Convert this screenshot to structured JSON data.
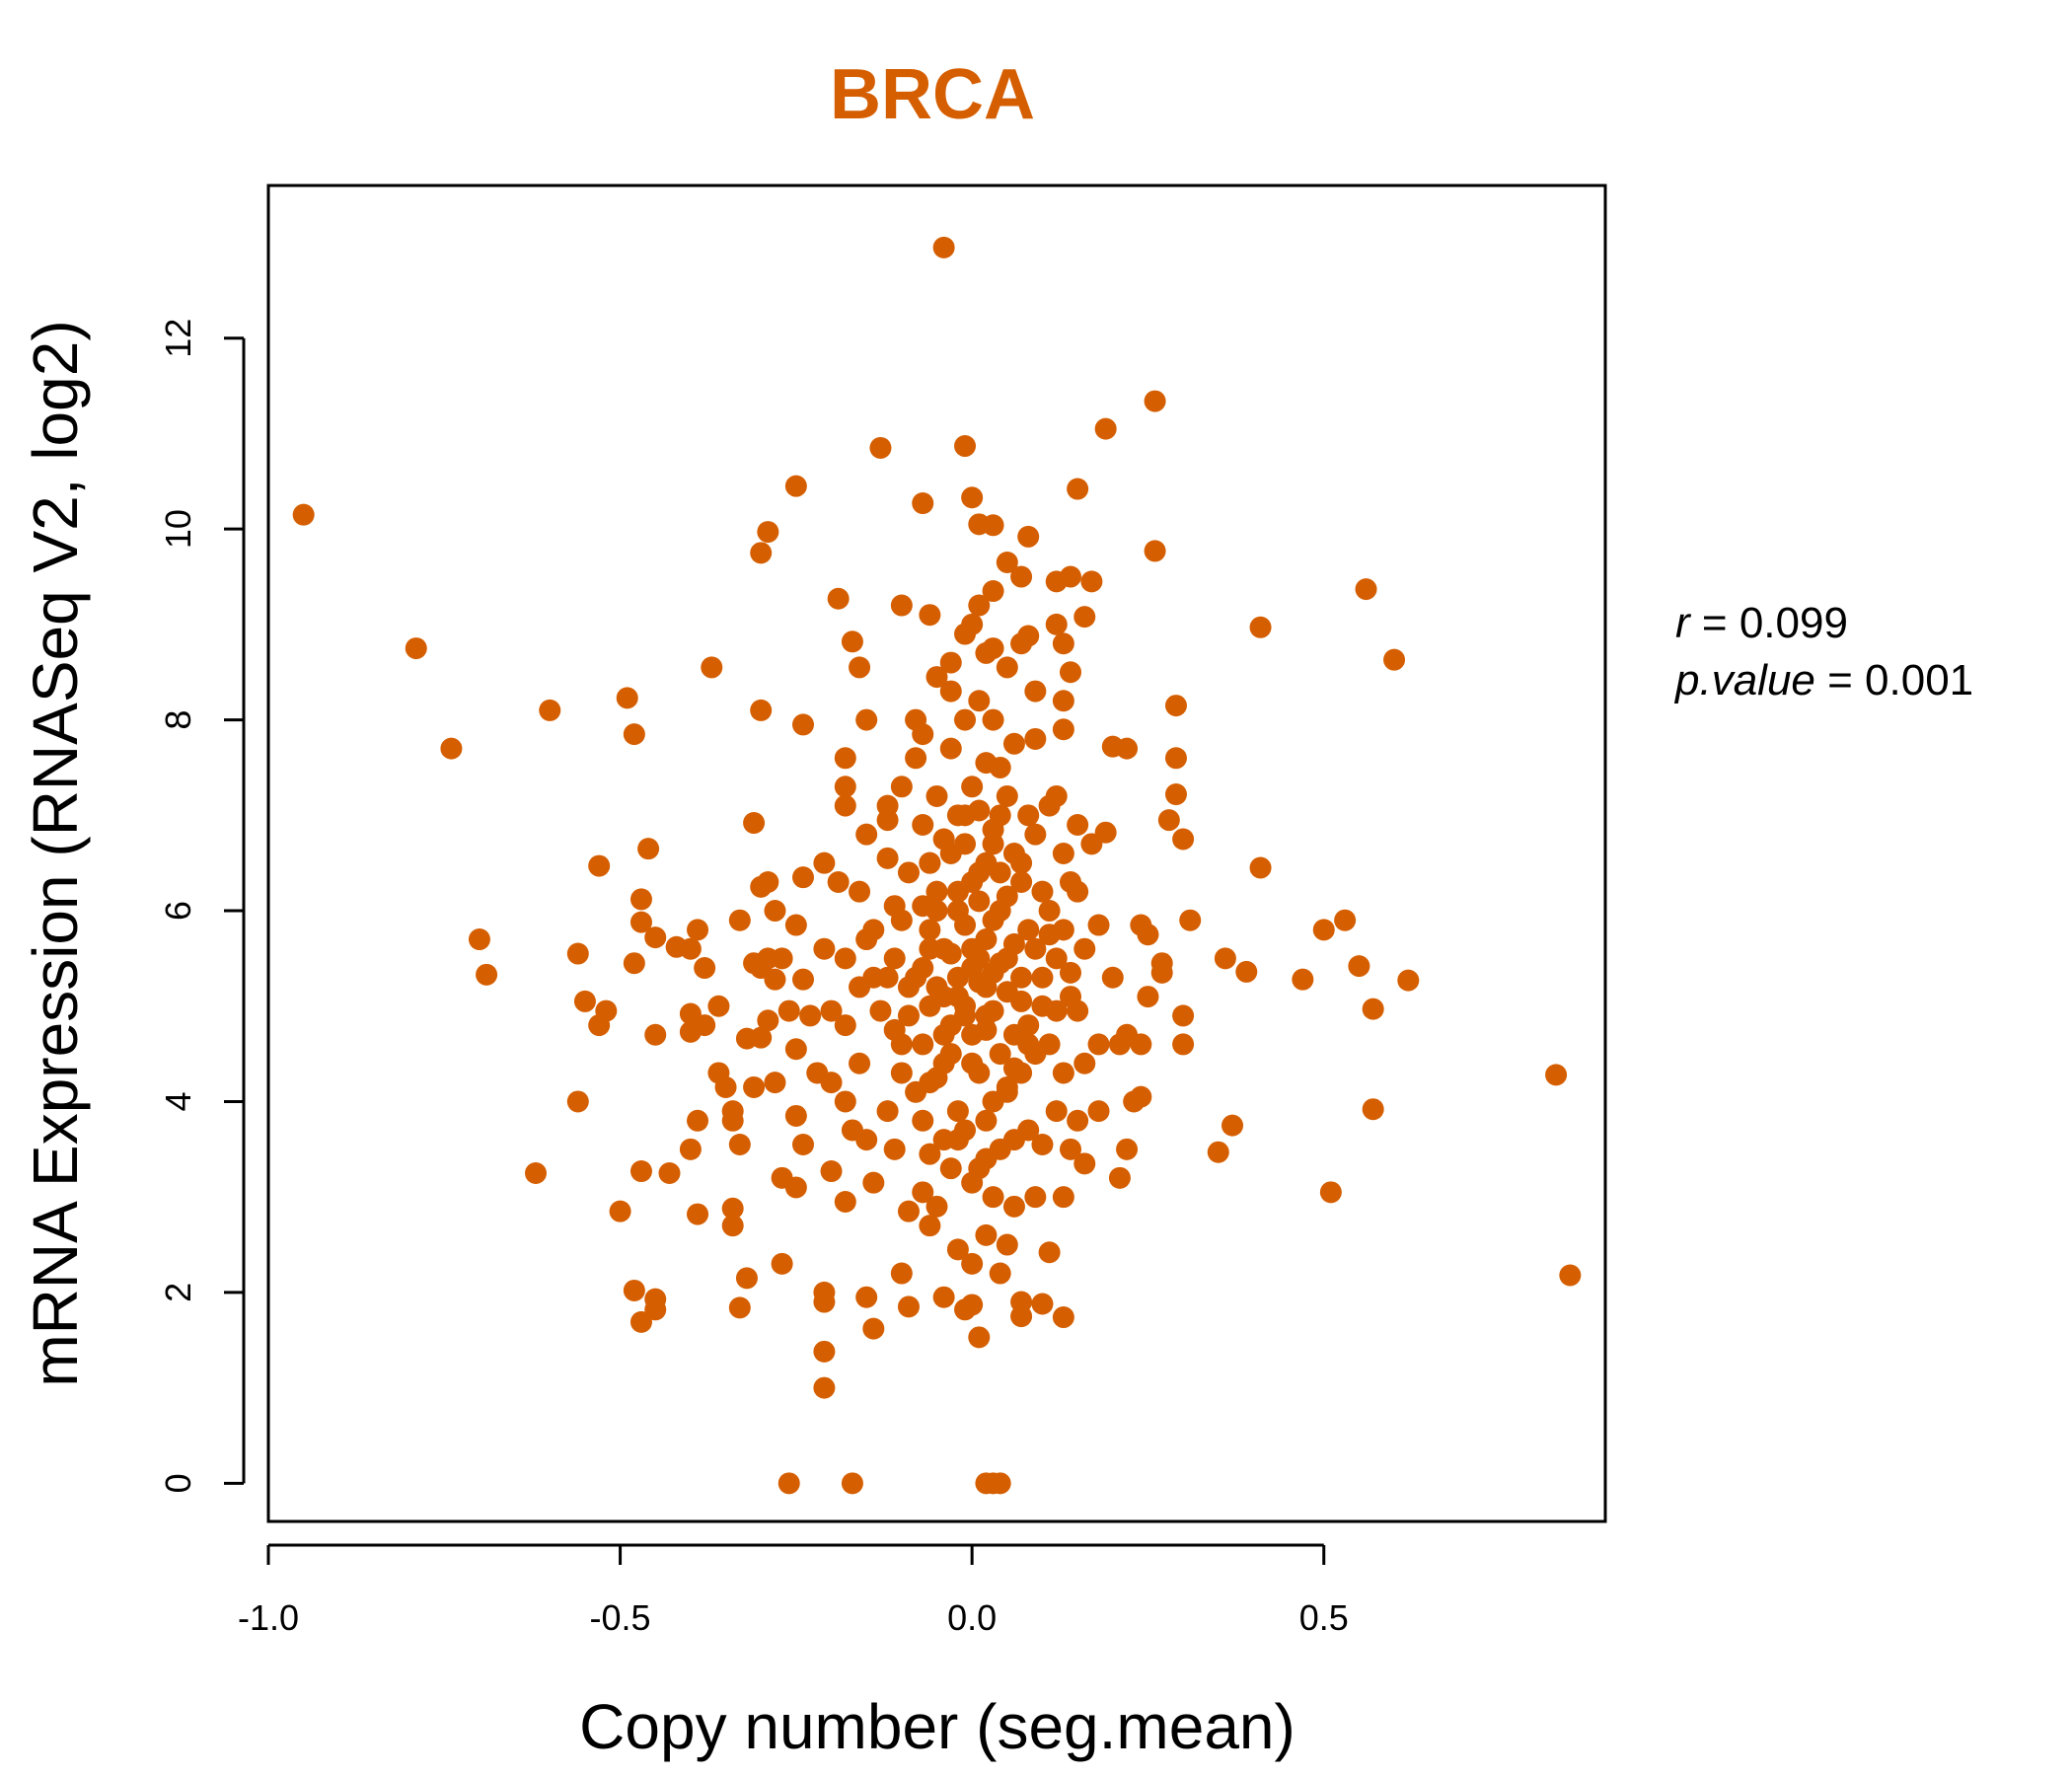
{
  "chart_data": {
    "type": "scatter",
    "title": "BRCA",
    "xlabel": "Copy number (seg.mean)",
    "ylabel": "mRNA Expression (RNASeq V2, log2)",
    "xlim": [
      -1.0,
      0.9
    ],
    "ylim": [
      -0.4,
      13.6
    ],
    "x_ticks": [
      -1.0,
      -0.5,
      0.0,
      0.5
    ],
    "x_tick_labels": [
      "-1.0",
      "-0.5",
      "0.0",
      "0.5"
    ],
    "y_ticks": [
      0,
      2,
      4,
      6,
      8,
      10,
      12
    ],
    "y_tick_labels": [
      "0",
      "2",
      "4",
      "6",
      "8",
      "10",
      "12"
    ],
    "grid": false,
    "legend": "none",
    "point_color": "#d55e00",
    "title_color": "#d55e00",
    "stats": {
      "r_symbol": "r",
      "r_value": "0.099",
      "p_symbol": "p.value",
      "p_value": "0.001"
    },
    "points": [
      [
        -0.95,
        10.15
      ],
      [
        -0.79,
        8.75
      ],
      [
        -0.74,
        7.7
      ],
      [
        -0.7,
        5.7
      ],
      [
        -0.69,
        5.33
      ],
      [
        -0.62,
        3.25
      ],
      [
        -0.6,
        8.1
      ],
      [
        -0.56,
        5.55
      ],
      [
        -0.56,
        4.0
      ],
      [
        -0.55,
        5.05
      ],
      [
        -0.53,
        6.47
      ],
      [
        -0.52,
        4.95
      ],
      [
        -0.53,
        4.8
      ],
      [
        -0.5,
        2.85
      ],
      [
        -0.49,
        8.23
      ],
      [
        -0.48,
        7.85
      ],
      [
        -0.48,
        2.02
      ],
      [
        -0.47,
        6.12
      ],
      [
        -0.48,
        5.45
      ],
      [
        -0.46,
        6.65
      ],
      [
        -0.47,
        5.88
      ],
      [
        -0.47,
        3.27
      ],
      [
        -0.45,
        5.72
      ],
      [
        -0.45,
        4.7
      ],
      [
        -0.47,
        1.69
      ],
      [
        -0.45,
        1.93
      ],
      [
        -0.45,
        1.82
      ],
      [
        -0.43,
        3.25
      ],
      [
        -0.42,
        5.62
      ],
      [
        -0.4,
        5.6
      ],
      [
        -0.4,
        4.92
      ],
      [
        -0.39,
        5.8
      ],
      [
        -0.4,
        4.73
      ],
      [
        -0.39,
        3.8
      ],
      [
        -0.4,
        3.5
      ],
      [
        -0.39,
        2.82
      ],
      [
        -0.38,
        5.4
      ],
      [
        -0.38,
        4.8
      ],
      [
        -0.37,
        8.55
      ],
      [
        -0.36,
        5.0
      ],
      [
        -0.35,
        4.15
      ],
      [
        -0.34,
        3.9
      ],
      [
        -0.36,
        4.3
      ],
      [
        -0.33,
        3.55
      ],
      [
        -0.34,
        3.8
      ],
      [
        -0.34,
        2.88
      ],
      [
        -0.34,
        2.7
      ],
      [
        -0.33,
        1.84
      ],
      [
        -0.33,
        5.9
      ],
      [
        -0.32,
        4.66
      ],
      [
        -0.32,
        2.15
      ],
      [
        -0.31,
        6.92
      ],
      [
        -0.3,
        6.25
      ],
      [
        -0.3,
        9.75
      ],
      [
        -0.29,
        9.97
      ],
      [
        -0.3,
        8.1
      ],
      [
        -0.29,
        6.3
      ],
      [
        -0.29,
        5.5
      ],
      [
        -0.3,
        5.4
      ],
      [
        -0.31,
        5.45
      ],
      [
        -0.29,
        4.85
      ],
      [
        -0.3,
        4.67
      ],
      [
        -0.31,
        4.15
      ],
      [
        -0.28,
        6.0
      ],
      [
        -0.27,
        5.5
      ],
      [
        -0.28,
        5.28
      ],
      [
        -0.28,
        4.2
      ],
      [
        -0.27,
        3.2
      ],
      [
        -0.27,
        2.3
      ],
      [
        -0.26,
        0.0
      ],
      [
        -0.25,
        10.45
      ],
      [
        -0.24,
        7.95
      ],
      [
        -0.24,
        6.35
      ],
      [
        -0.25,
        5.85
      ],
      [
        -0.24,
        5.28
      ],
      [
        -0.26,
        4.95
      ],
      [
        -0.25,
        4.55
      ],
      [
        -0.25,
        3.85
      ],
      [
        -0.24,
        3.55
      ],
      [
        -0.25,
        3.1
      ],
      [
        -0.23,
        4.9
      ],
      [
        -0.22,
        4.3
      ],
      [
        -0.21,
        6.5
      ],
      [
        -0.21,
        5.6
      ],
      [
        -0.2,
        4.95
      ],
      [
        -0.2,
        4.2
      ],
      [
        -0.2,
        3.27
      ],
      [
        -0.21,
        2.0
      ],
      [
        -0.21,
        1.9
      ],
      [
        -0.21,
        1.38
      ],
      [
        -0.21,
        1.0
      ],
      [
        -0.19,
        9.27
      ],
      [
        -0.18,
        7.6
      ],
      [
        -0.18,
        7.3
      ],
      [
        -0.18,
        7.1
      ],
      [
        -0.19,
        6.3
      ],
      [
        -0.18,
        5.5
      ],
      [
        -0.18,
        4.8
      ],
      [
        -0.18,
        4.0
      ],
      [
        -0.17,
        3.7
      ],
      [
        -0.18,
        2.95
      ],
      [
        -0.17,
        0.0
      ],
      [
        -0.17,
        8.82
      ],
      [
        -0.16,
        8.55
      ],
      [
        -0.15,
        8.0
      ],
      [
        -0.15,
        6.8
      ],
      [
        -0.16,
        6.2
      ],
      [
        -0.15,
        5.7
      ],
      [
        -0.14,
        5.3
      ],
      [
        -0.16,
        4.4
      ],
      [
        -0.15,
        3.6
      ],
      [
        -0.14,
        3.15
      ],
      [
        -0.14,
        1.62
      ],
      [
        -0.15,
        1.95
      ],
      [
        -0.13,
        10.85
      ],
      [
        -0.12,
        7.1
      ],
      [
        -0.12,
        6.95
      ],
      [
        -0.12,
        6.55
      ],
      [
        -0.11,
        6.05
      ],
      [
        -0.12,
        5.3
      ],
      [
        -0.11,
        4.75
      ],
      [
        -0.12,
        3.9
      ],
      [
        -0.11,
        3.5
      ],
      [
        -0.1,
        9.2
      ],
      [
        -0.1,
        7.3
      ],
      [
        -0.09,
        6.4
      ],
      [
        -0.1,
        5.9
      ],
      [
        -0.09,
        5.2
      ],
      [
        -0.1,
        4.3
      ],
      [
        -0.09,
        2.85
      ],
      [
        -0.1,
        2.2
      ],
      [
        -0.09,
        1.85
      ],
      [
        -0.07,
        10.27
      ],
      [
        -0.08,
        8.0
      ],
      [
        -0.07,
        7.85
      ],
      [
        -0.08,
        7.6
      ],
      [
        -0.07,
        6.9
      ],
      [
        -0.06,
        6.5
      ],
      [
        -0.07,
        6.05
      ],
      [
        -0.06,
        5.8
      ],
      [
        -0.07,
        5.4
      ],
      [
        -0.06,
        5.0
      ],
      [
        -0.07,
        4.6
      ],
      [
        -0.06,
        4.2
      ],
      [
        -0.07,
        3.8
      ],
      [
        -0.06,
        3.45
      ],
      [
        -0.07,
        3.05
      ],
      [
        -0.06,
        2.7
      ],
      [
        -0.06,
        9.1
      ],
      [
        -0.05,
        8.45
      ],
      [
        -0.05,
        7.2
      ],
      [
        -0.04,
        12.95
      ],
      [
        -0.04,
        6.75
      ],
      [
        -0.05,
        6.2
      ],
      [
        -0.04,
        5.6
      ],
      [
        -0.05,
        5.2
      ],
      [
        -0.04,
        4.7
      ],
      [
        -0.05,
        4.25
      ],
      [
        -0.04,
        3.6
      ],
      [
        -0.05,
        2.9
      ],
      [
        -0.04,
        1.95
      ],
      [
        -0.03,
        8.6
      ],
      [
        -0.03,
        8.3
      ],
      [
        -0.03,
        7.7
      ],
      [
        -0.02,
        7.0
      ],
      [
        -0.03,
        6.6
      ],
      [
        -0.02,
        6.0
      ],
      [
        -0.03,
        5.55
      ],
      [
        -0.02,
        5.1
      ],
      [
        -0.03,
        4.5
      ],
      [
        -0.02,
        3.9
      ],
      [
        -0.03,
        3.3
      ],
      [
        -0.02,
        2.45
      ],
      [
        -0.01,
        10.87
      ],
      [
        -0.01,
        8.9
      ],
      [
        0.0,
        9.0
      ],
      [
        -0.01,
        8.0
      ],
      [
        0.0,
        7.3
      ],
      [
        -0.01,
        6.7
      ],
      [
        0.0,
        6.3
      ],
      [
        -0.01,
        5.85
      ],
      [
        0.0,
        5.4
      ],
      [
        -0.01,
        4.9
      ],
      [
        0.0,
        4.4
      ],
      [
        -0.01,
        3.7
      ],
      [
        0.0,
        3.15
      ],
      [
        0.0,
        2.3
      ],
      [
        -0.01,
        1.82
      ],
      [
        0.0,
        1.87
      ],
      [
        0.0,
        10.33
      ],
      [
        0.01,
        10.05
      ],
      [
        0.01,
        1.53
      ],
      [
        0.01,
        9.2
      ],
      [
        0.02,
        8.7
      ],
      [
        0.01,
        8.2
      ],
      [
        0.02,
        7.55
      ],
      [
        0.01,
        7.05
      ],
      [
        0.02,
        6.5
      ],
      [
        0.01,
        6.1
      ],
      [
        0.02,
        5.7
      ],
      [
        0.01,
        5.25
      ],
      [
        0.02,
        4.75
      ],
      [
        0.01,
        4.3
      ],
      [
        0.02,
        3.8
      ],
      [
        0.01,
        3.3
      ],
      [
        0.02,
        2.6
      ],
      [
        0.02,
        0.0
      ],
      [
        0.03,
        10.04
      ],
      [
        0.03,
        9.35
      ],
      [
        0.03,
        8.75
      ],
      [
        0.03,
        8.0
      ],
      [
        0.04,
        7.5
      ],
      [
        0.03,
        6.85
      ],
      [
        0.04,
        6.4
      ],
      [
        0.03,
        5.9
      ],
      [
        0.04,
        5.45
      ],
      [
        0.03,
        4.95
      ],
      [
        0.04,
        4.5
      ],
      [
        0.03,
        4.0
      ],
      [
        0.04,
        3.5
      ],
      [
        0.03,
        3.0
      ],
      [
        0.04,
        2.2
      ],
      [
        0.03,
        0.0
      ],
      [
        0.04,
        0.0
      ],
      [
        0.05,
        9.65
      ],
      [
        0.05,
        8.55
      ],
      [
        0.06,
        7.75
      ],
      [
        0.05,
        7.2
      ],
      [
        0.06,
        6.6
      ],
      [
        0.05,
        6.15
      ],
      [
        0.06,
        5.65
      ],
      [
        0.05,
        5.15
      ],
      [
        0.06,
        4.7
      ],
      [
        0.05,
        4.15
      ],
      [
        0.06,
        3.6
      ],
      [
        0.05,
        2.5
      ],
      [
        0.06,
        2.9
      ],
      [
        0.07,
        9.5
      ],
      [
        0.07,
        8.8
      ],
      [
        0.08,
        7.0
      ],
      [
        0.07,
        6.3
      ],
      [
        0.08,
        5.8
      ],
      [
        0.07,
        5.3
      ],
      [
        0.08,
        4.8
      ],
      [
        0.07,
        4.3
      ],
      [
        0.08,
        3.7
      ],
      [
        0.07,
        1.75
      ],
      [
        0.07,
        1.9
      ],
      [
        0.08,
        9.92
      ],
      [
        0.08,
        8.88
      ],
      [
        0.09,
        8.3
      ],
      [
        0.09,
        7.8
      ],
      [
        0.09,
        6.8
      ],
      [
        0.1,
        6.2
      ],
      [
        0.09,
        5.6
      ],
      [
        0.1,
        5.0
      ],
      [
        0.09,
        4.5
      ],
      [
        0.1,
        3.55
      ],
      [
        0.09,
        3.0
      ],
      [
        0.1,
        1.88
      ],
      [
        0.11,
        7.1
      ],
      [
        0.11,
        6.0
      ],
      [
        0.12,
        5.5
      ],
      [
        0.11,
        4.6
      ],
      [
        0.12,
        3.9
      ],
      [
        0.11,
        2.42
      ],
      [
        0.12,
        9.45
      ],
      [
        0.12,
        9.0
      ],
      [
        0.13,
        8.8
      ],
      [
        0.13,
        8.2
      ],
      [
        0.13,
        7.9
      ],
      [
        0.12,
        7.2
      ],
      [
        0.13,
        6.6
      ],
      [
        0.14,
        6.3
      ],
      [
        0.13,
        5.8
      ],
      [
        0.14,
        5.1
      ],
      [
        0.13,
        4.3
      ],
      [
        0.14,
        3.5
      ],
      [
        0.13,
        3.0
      ],
      [
        0.13,
        1.74
      ],
      [
        0.14,
        9.5
      ],
      [
        0.14,
        8.5
      ],
      [
        0.15,
        6.9
      ],
      [
        0.15,
        6.2
      ],
      [
        0.16,
        5.6
      ],
      [
        0.15,
        4.95
      ],
      [
        0.16,
        4.4
      ],
      [
        0.15,
        3.8
      ],
      [
        0.16,
        3.35
      ],
      [
        0.15,
        10.42
      ],
      [
        0.16,
        9.08
      ],
      [
        0.17,
        9.45
      ],
      [
        0.17,
        6.7
      ],
      [
        0.18,
        5.85
      ],
      [
        0.18,
        4.6
      ],
      [
        0.18,
        3.9
      ],
      [
        0.19,
        6.82
      ],
      [
        0.19,
        11.05
      ],
      [
        0.2,
        7.72
      ],
      [
        0.2,
        5.3
      ],
      [
        0.21,
        4.6
      ],
      [
        0.21,
        3.2
      ],
      [
        0.22,
        7.7
      ],
      [
        0.22,
        4.7
      ],
      [
        0.22,
        3.5
      ],
      [
        0.23,
        4.0
      ],
      [
        0.24,
        5.85
      ],
      [
        0.24,
        4.6
      ],
      [
        0.24,
        4.05
      ],
      [
        0.25,
        5.75
      ],
      [
        0.25,
        5.1
      ],
      [
        0.26,
        11.34
      ],
      [
        0.26,
        9.77
      ],
      [
        0.27,
        5.45
      ],
      [
        0.27,
        5.35
      ],
      [
        0.28,
        6.95
      ],
      [
        0.29,
        7.6
      ],
      [
        0.29,
        7.22
      ],
      [
        0.29,
        8.15
      ],
      [
        0.3,
        6.75
      ],
      [
        0.3,
        4.9
      ],
      [
        0.3,
        4.6
      ],
      [
        0.31,
        5.9
      ],
      [
        0.35,
        3.47
      ],
      [
        0.37,
        3.75
      ],
      [
        0.36,
        5.5
      ],
      [
        0.39,
        5.36
      ],
      [
        0.41,
        8.97
      ],
      [
        0.41,
        6.45
      ],
      [
        0.47,
        5.28
      ],
      [
        0.5,
        5.8
      ],
      [
        0.51,
        3.05
      ],
      [
        0.53,
        5.9
      ],
      [
        0.55,
        5.42
      ],
      [
        0.56,
        9.37
      ],
      [
        0.57,
        3.92
      ],
      [
        0.57,
        4.97
      ],
      [
        0.6,
        8.63
      ],
      [
        0.62,
        5.27
      ],
      [
        0.83,
        4.28
      ],
      [
        0.85,
        2.18
      ],
      [
        -0.02,
        5.3
      ],
      [
        -0.01,
        5.0
      ],
      [
        0.0,
        5.6
      ],
      [
        0.01,
        5.5
      ],
      [
        0.02,
        5.2
      ],
      [
        -0.03,
        4.8
      ],
      [
        0.0,
        4.7
      ],
      [
        0.02,
        4.9
      ],
      [
        -0.04,
        5.1
      ],
      [
        0.03,
        5.35
      ],
      [
        -0.06,
        5.6
      ],
      [
        0.05,
        5.5
      ],
      [
        -0.08,
        5.3
      ],
      [
        0.07,
        5.05
      ],
      [
        -0.09,
        4.9
      ],
      [
        0.08,
        4.6
      ],
      [
        -0.11,
        5.5
      ],
      [
        0.1,
        5.3
      ],
      [
        -0.13,
        4.95
      ],
      [
        0.12,
        4.95
      ],
      [
        -0.05,
        6.0
      ],
      [
        0.04,
        6.0
      ],
      [
        -0.02,
        6.2
      ],
      [
        0.01,
        6.4
      ],
      [
        0.03,
        6.7
      ],
      [
        -0.04,
        4.4
      ],
      [
        0.05,
        4.1
      ],
      [
        -0.08,
        4.1
      ],
      [
        0.06,
        4.35
      ],
      [
        -0.1,
        4.6
      ],
      [
        -0.14,
        5.8
      ],
      [
        0.11,
        5.75
      ],
      [
        -0.16,
        5.2
      ],
      [
        0.14,
        5.35
      ],
      [
        -0.02,
        3.6
      ],
      [
        0.02,
        3.4
      ],
      [
        -0.06,
        6.5
      ],
      [
        0.07,
        6.5
      ],
      [
        -0.01,
        7.0
      ],
      [
        0.04,
        7.0
      ]
    ]
  }
}
